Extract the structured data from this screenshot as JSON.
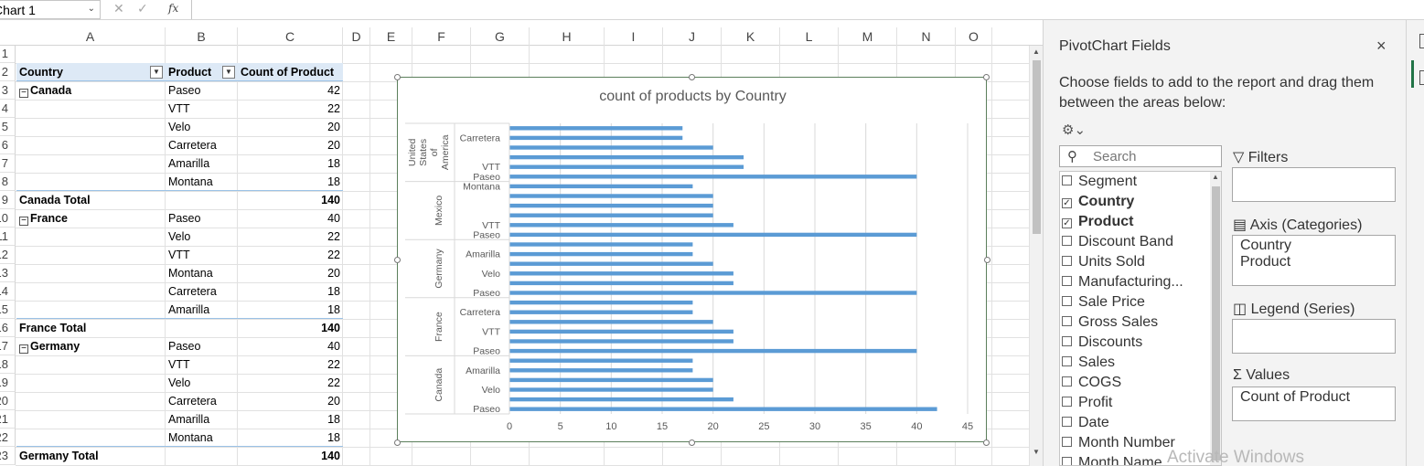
{
  "formula_bar": {
    "name_box": "Chart 1",
    "fx_label": "fx"
  },
  "sheet": {
    "columns": [
      "A",
      "B",
      "C",
      "D",
      "E",
      "F",
      "G",
      "H",
      "I",
      "J",
      "K",
      "L",
      "M",
      "N",
      "O"
    ],
    "rows": [
      "1",
      "2",
      "3",
      "4",
      "5",
      "6",
      "7",
      "8",
      "9",
      "10",
      "11",
      "12",
      "13",
      "14",
      "15",
      "16",
      "17",
      "18",
      "19",
      "20",
      "21",
      "22",
      "23"
    ]
  },
  "pivot_table": {
    "headers": [
      "Country",
      "Product",
      "Count of Product"
    ],
    "groups": [
      {
        "country": "Canada",
        "items": [
          {
            "product": "Paseo",
            "count": "42"
          },
          {
            "product": "VTT",
            "count": "22"
          },
          {
            "product": "Velo",
            "count": "20"
          },
          {
            "product": "Carretera",
            "count": "20"
          },
          {
            "product": "Amarilla",
            "count": "18"
          },
          {
            "product": "Montana",
            "count": "18"
          }
        ],
        "total_label": "Canada Total",
        "total": "140"
      },
      {
        "country": "France",
        "items": [
          {
            "product": "Paseo",
            "count": "40"
          },
          {
            "product": "Velo",
            "count": "22"
          },
          {
            "product": "VTT",
            "count": "22"
          },
          {
            "product": "Montana",
            "count": "20"
          },
          {
            "product": "Carretera",
            "count": "18"
          },
          {
            "product": "Amarilla",
            "count": "18"
          }
        ],
        "total_label": "France Total",
        "total": "140"
      },
      {
        "country": "Germany",
        "items": [
          {
            "product": "Paseo",
            "count": "40"
          },
          {
            "product": "VTT",
            "count": "22"
          },
          {
            "product": "Velo",
            "count": "22"
          },
          {
            "product": "Carretera",
            "count": "20"
          },
          {
            "product": "Amarilla",
            "count": "18"
          },
          {
            "product": "Montana",
            "count": "18"
          }
        ],
        "total_label": "Germany Total",
        "total": "140"
      }
    ]
  },
  "chart_data": {
    "type": "bar",
    "orientation": "horizontal",
    "title": "count of products by Country",
    "xlim": [
      0,
      45
    ],
    "x_ticks": [
      "0",
      "5",
      "10",
      "15",
      "20",
      "25",
      "30",
      "35",
      "40",
      "45"
    ],
    "grid": true,
    "bar_color": "#5b9bd5",
    "groups": [
      {
        "name": "Canada",
        "categories": [
          "Paseo",
          "VTT",
          "Velo",
          "Carretera",
          "Amarilla",
          "Montana"
        ],
        "values": [
          42,
          22,
          20,
          20,
          18,
          18
        ],
        "visible_labels": [
          "Paseo",
          "Velo",
          "Amarilla"
        ]
      },
      {
        "name": "France",
        "categories": [
          "Paseo",
          "Velo",
          "VTT",
          "Montana",
          "Carretera",
          "Amarilla"
        ],
        "values": [
          40,
          22,
          22,
          20,
          18,
          18
        ],
        "visible_labels": [
          "Paseo",
          "VTT",
          "Carretera"
        ]
      },
      {
        "name": "Germany",
        "categories": [
          "Paseo",
          "VTT",
          "Velo",
          "Carretera",
          "Amarilla",
          "Montana"
        ],
        "values": [
          40,
          22,
          22,
          20,
          18,
          18
        ],
        "visible_labels": [
          "Paseo",
          "Velo",
          "Amarilla"
        ]
      },
      {
        "name": "Mexico",
        "categories": [
          "Paseo",
          "VTT",
          "Velo",
          "Carretera",
          "Amarilla",
          "Montana"
        ],
        "values": [
          40,
          22,
          20,
          20,
          20,
          18
        ],
        "visible_labels": [
          "Paseo",
          "VTT",
          "Montana"
        ]
      },
      {
        "name": "United States of America",
        "categories": [
          "Paseo",
          "VTT",
          "Velo",
          "Montana",
          "Carretera",
          "Amarilla"
        ],
        "values": [
          40,
          23,
          23,
          20,
          17,
          17
        ],
        "visible_labels": [
          "Paseo",
          "VTT",
          "Carretera"
        ]
      }
    ]
  },
  "pane": {
    "title": "PivotChart Fields",
    "close": "×",
    "description": "Choose fields to add to the report and drag them between the areas below:",
    "gear": "⚙⌄",
    "search_placeholder": "Search",
    "fields": [
      {
        "label": "Segment",
        "checked": false
      },
      {
        "label": "Country",
        "checked": true
      },
      {
        "label": "Product",
        "checked": true
      },
      {
        "label": "Discount Band",
        "checked": false
      },
      {
        "label": "Units Sold",
        "checked": false
      },
      {
        "label": "Manufacturing...",
        "checked": false
      },
      {
        "label": "Sale Price",
        "checked": false
      },
      {
        "label": "Gross Sales",
        "checked": false
      },
      {
        "label": "Discounts",
        "checked": false
      },
      {
        "label": "Sales",
        "checked": false
      },
      {
        "label": "COGS",
        "checked": false
      },
      {
        "label": "Profit",
        "checked": false
      },
      {
        "label": "Date",
        "checked": false
      },
      {
        "label": "Month Number",
        "checked": false
      },
      {
        "label": "Month Name",
        "checked": false
      }
    ],
    "areas": {
      "filters": {
        "label": "Filters",
        "items": []
      },
      "axis": {
        "label": "Axis (Categories)",
        "items": [
          "Country",
          "Product"
        ]
      },
      "legend": {
        "label": "Legend (Series)",
        "items": []
      },
      "values": {
        "label": "Values",
        "items": [
          "Count of Product"
        ]
      }
    },
    "watermark": "Activate Windows"
  }
}
